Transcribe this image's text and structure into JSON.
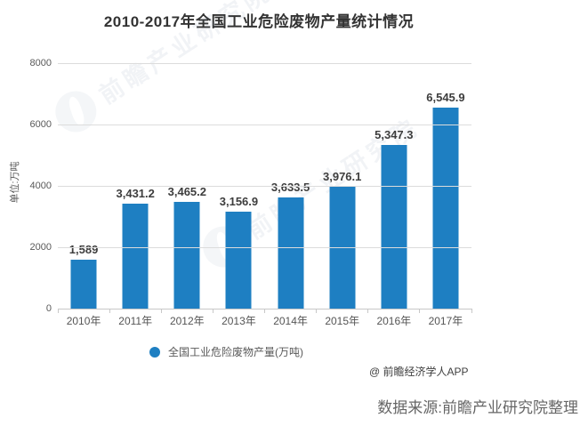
{
  "title": "2010-2017年全国工业危险废物产量统计情况",
  "y_axis": {
    "unit_label": "单位:万吨",
    "ticks": [
      "8000",
      "6000",
      "4000",
      "2000",
      "0"
    ]
  },
  "chart_data": {
    "type": "bar",
    "title": "2010-2017年全国工业危险废物产量统计情况",
    "categories": [
      "2010年",
      "2011年",
      "2012年",
      "2013年",
      "2014年",
      "2015年",
      "2016年",
      "2017年"
    ],
    "values": [
      1589,
      3431.2,
      3465.2,
      3156.9,
      3633.5,
      3976.1,
      5347.3,
      6545.9
    ],
    "value_labels": [
      "1,589",
      "3,431.2",
      "3,465.2",
      "3,156.9",
      "3,633.5",
      "3,976.1",
      "5,347.3",
      "6,545.9"
    ],
    "series_name": "全国工业危险废物产量(万吨)",
    "xlabel": "",
    "ylabel": "单位:万吨",
    "ylim": [
      0,
      8000
    ],
    "grid": true,
    "legend_position": "bottom",
    "bar_color": "#1e7fc2"
  },
  "legend": {
    "label": "全国工业危险废物产量(万吨)",
    "marker_color": "#1e7fc2"
  },
  "watermark": {
    "text": "前瞻产业研究院"
  },
  "attribution": "@ 前瞻经济学人APP",
  "source_note": "数据来源:前瞻产业研究院整理",
  "colors": {
    "bar": "#1e7fc2",
    "title_text": "#333333",
    "axis_text": "#595959",
    "gridline": "#dcdcdc"
  }
}
